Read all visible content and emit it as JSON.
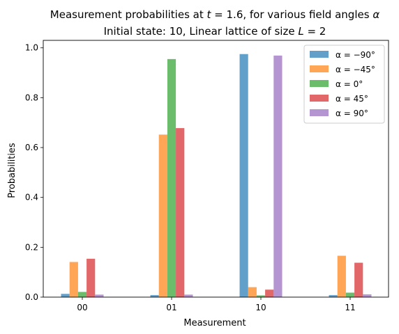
{
  "chart_data": {
    "type": "bar",
    "title_line1": "Measurement probabilities at t = 1.6, for various field angles α",
    "title_line2": "Initial state: 10, Linear lattice of size L = 2",
    "xlabel": "Measurement",
    "ylabel": "Probabilities",
    "categories": [
      "00",
      "01",
      "10",
      "11"
    ],
    "ylim": [
      0,
      1.03
    ],
    "yticks": [
      "0.0",
      "0.2",
      "0.4",
      "0.6",
      "0.8",
      "1.0"
    ],
    "legend_position": "top-right",
    "series": [
      {
        "name": "α = −90°",
        "color": "#1f77b4",
        "values": [
          0.013,
          0.008,
          0.975,
          0.008
        ]
      },
      {
        "name": "α = −45°",
        "color": "#ff7f0e",
        "values": [
          0.141,
          0.652,
          0.04,
          0.166
        ]
      },
      {
        "name": "α = 0°",
        "color": "#2ca02c",
        "values": [
          0.021,
          0.955,
          0.007,
          0.018
        ]
      },
      {
        "name": "α = 45°",
        "color": "#d62728",
        "values": [
          0.154,
          0.678,
          0.03,
          0.138
        ]
      },
      {
        "name": "α = 90°",
        "color": "#9467bd",
        "values": [
          0.01,
          0.01,
          0.969,
          0.011
        ]
      }
    ]
  }
}
